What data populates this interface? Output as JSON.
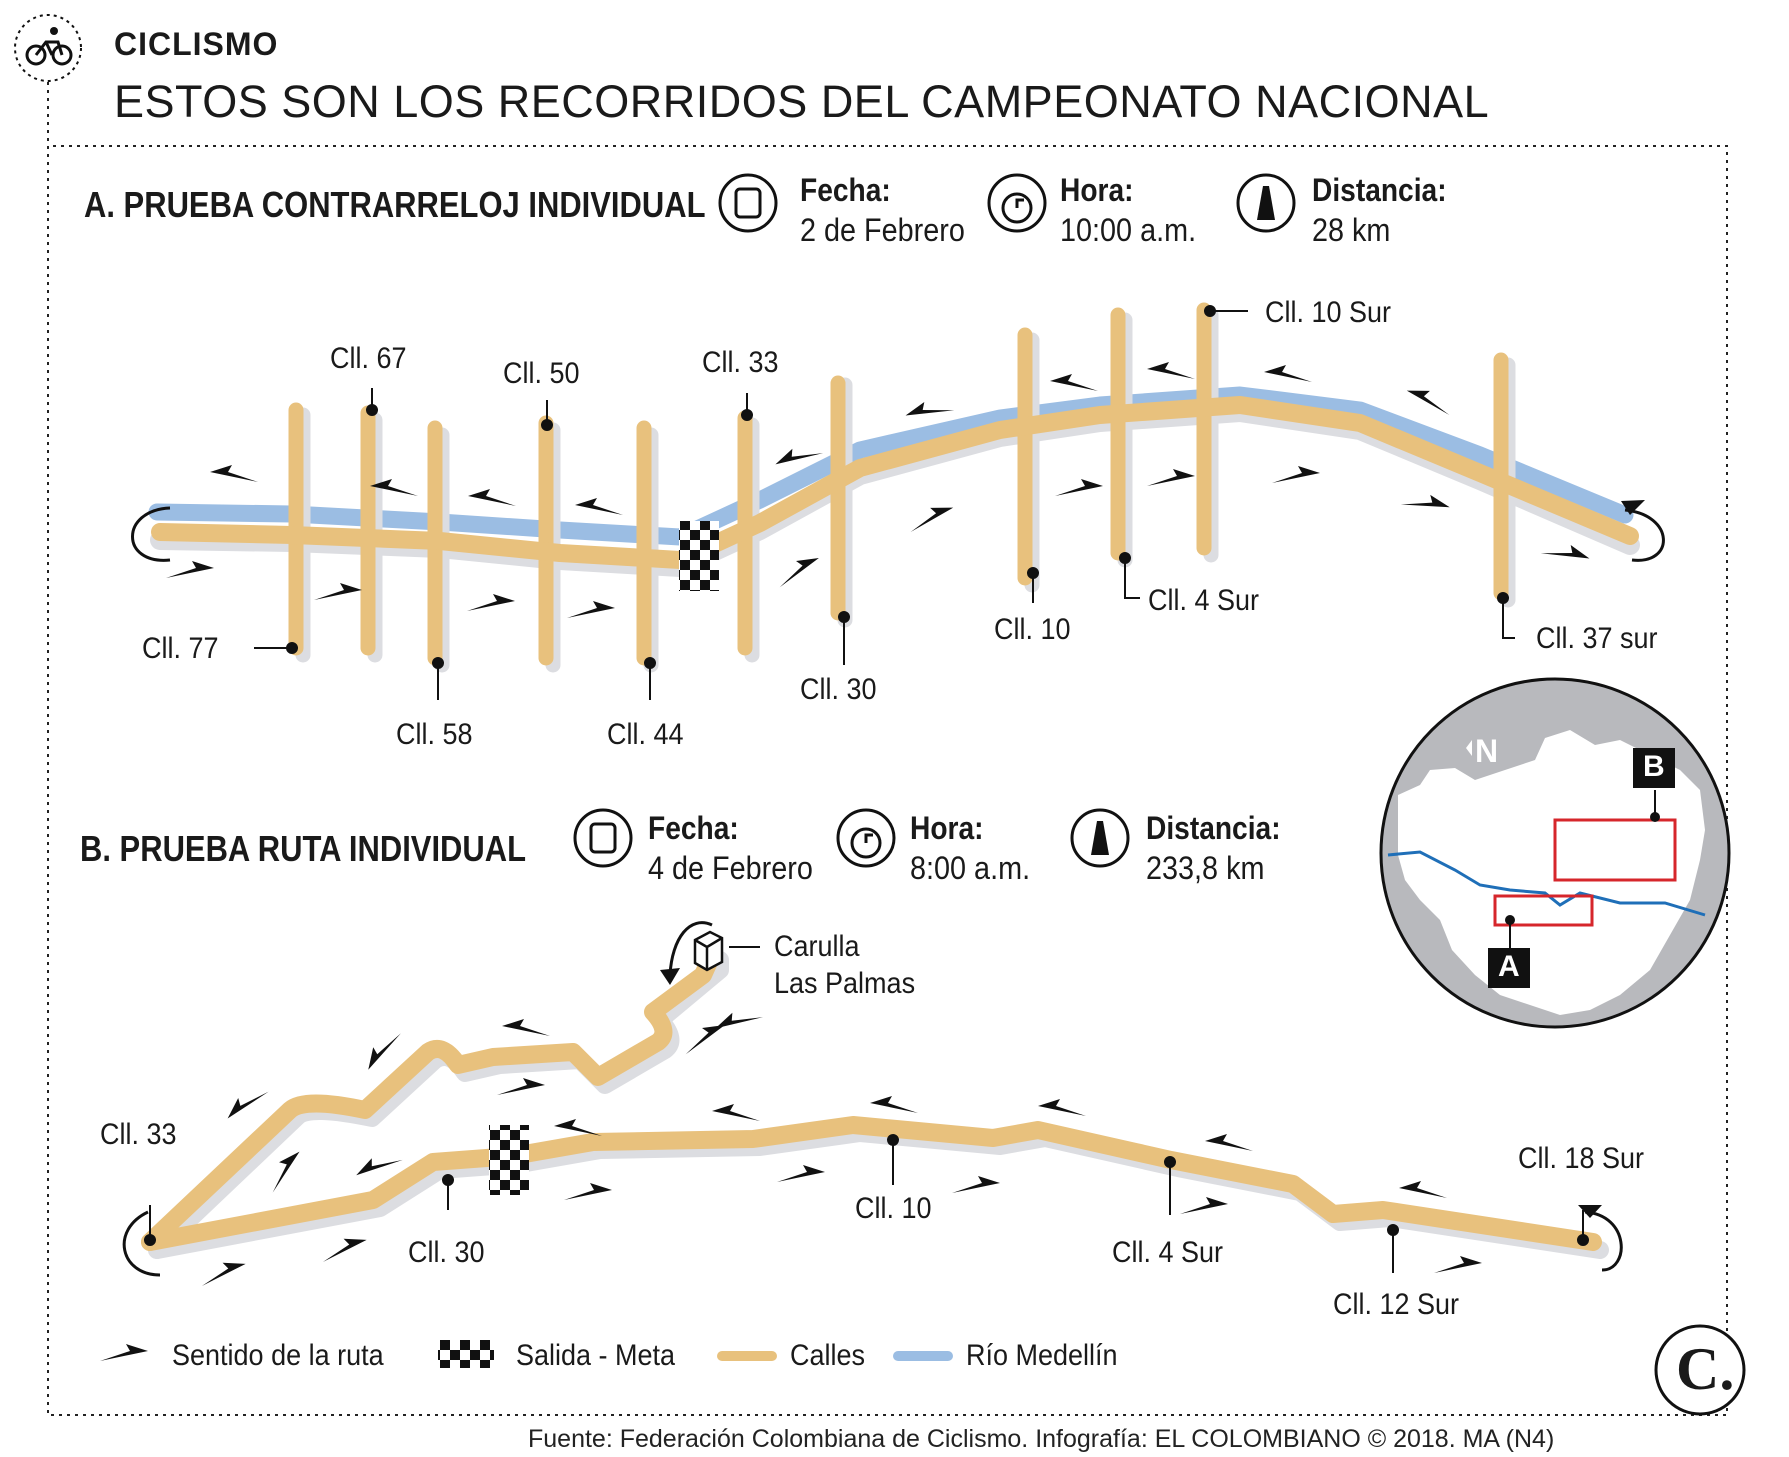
{
  "header": {
    "kicker": "CICLISMO",
    "headline": "ESTOS SON LOS RECORRIDOS DEL CAMPEONATO NACIONAL"
  },
  "section_a": {
    "title": "A. PRUEBA CONTRARRELOJ INDIVIDUAL",
    "fecha_label": "Fecha:",
    "fecha_value": "2 de Febrero",
    "hora_label": "Hora:",
    "hora_value": "10:00 a.m.",
    "distancia_label": "Distancia:",
    "distancia_value": "28 km",
    "streets": [
      "Cll. 67",
      "Cll. 50",
      "Cll. 33",
      "Cll. 10 Sur",
      "Cll. 77",
      "Cll. 58",
      "Cll. 44",
      "Cll. 30",
      "Cll. 10",
      "Cll. 4 Sur",
      "Cll. 37 sur"
    ]
  },
  "section_b": {
    "title": "B. PRUEBA RUTA INDIVIDUAL",
    "fecha_label": "Fecha:",
    "fecha_value": "4 de Febrero",
    "hora_label": "Hora:",
    "hora_value": "8:00 a.m.",
    "distancia_label": "Distancia:",
    "distancia_value": "233,8 km",
    "landmark_line1": "Carulla",
    "landmark_line2": "Las Palmas",
    "streets": [
      "Cll. 33",
      "Cll. 30",
      "Cll. 10",
      "Cll. 4 Sur",
      "Cll. 12 Sur",
      "Cll. 18 Sur"
    ]
  },
  "locator_map": {
    "north": "N",
    "marker_a": "A",
    "marker_b": "B"
  },
  "legend": {
    "direction": "Sentido de la ruta",
    "start_finish": "Salida - Meta",
    "streets": "Calles",
    "river": "Río Medellín"
  },
  "colors": {
    "street": "#e8c17d",
    "river": "#9bbde3",
    "shadow": "#dcdde1",
    "map_box": "#d6262b",
    "map_river": "#1f6fb8",
    "ink": "#1a1a1a"
  },
  "icons": [
    "cyclist-icon",
    "calendar-icon",
    "clock-icon",
    "road-icon",
    "direction-arrow-icon",
    "checkered-flag-icon",
    "building-icon",
    "publisher-logo"
  ],
  "logo": "C.",
  "source": "Fuente: Federación Colombiana de Ciclismo. Infografía: EL COLOMBIANO © 2018. MA (N4)"
}
